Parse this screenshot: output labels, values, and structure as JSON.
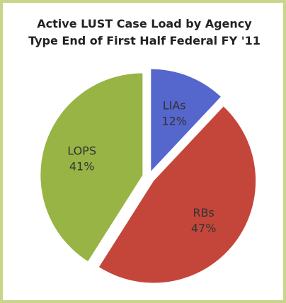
{
  "chart_data": {
    "type": "pie",
    "title": "Active LUST Case Load by Agency Type End of First Half Federal FY '11",
    "categories": [
      "LIAs",
      "RBs",
      "LOPS"
    ],
    "values": [
      12,
      47,
      41
    ],
    "value_labels": [
      "12%",
      "47%",
      "41%"
    ],
    "colors": [
      "#5566cc",
      "#c4463a",
      "#98b444"
    ]
  }
}
